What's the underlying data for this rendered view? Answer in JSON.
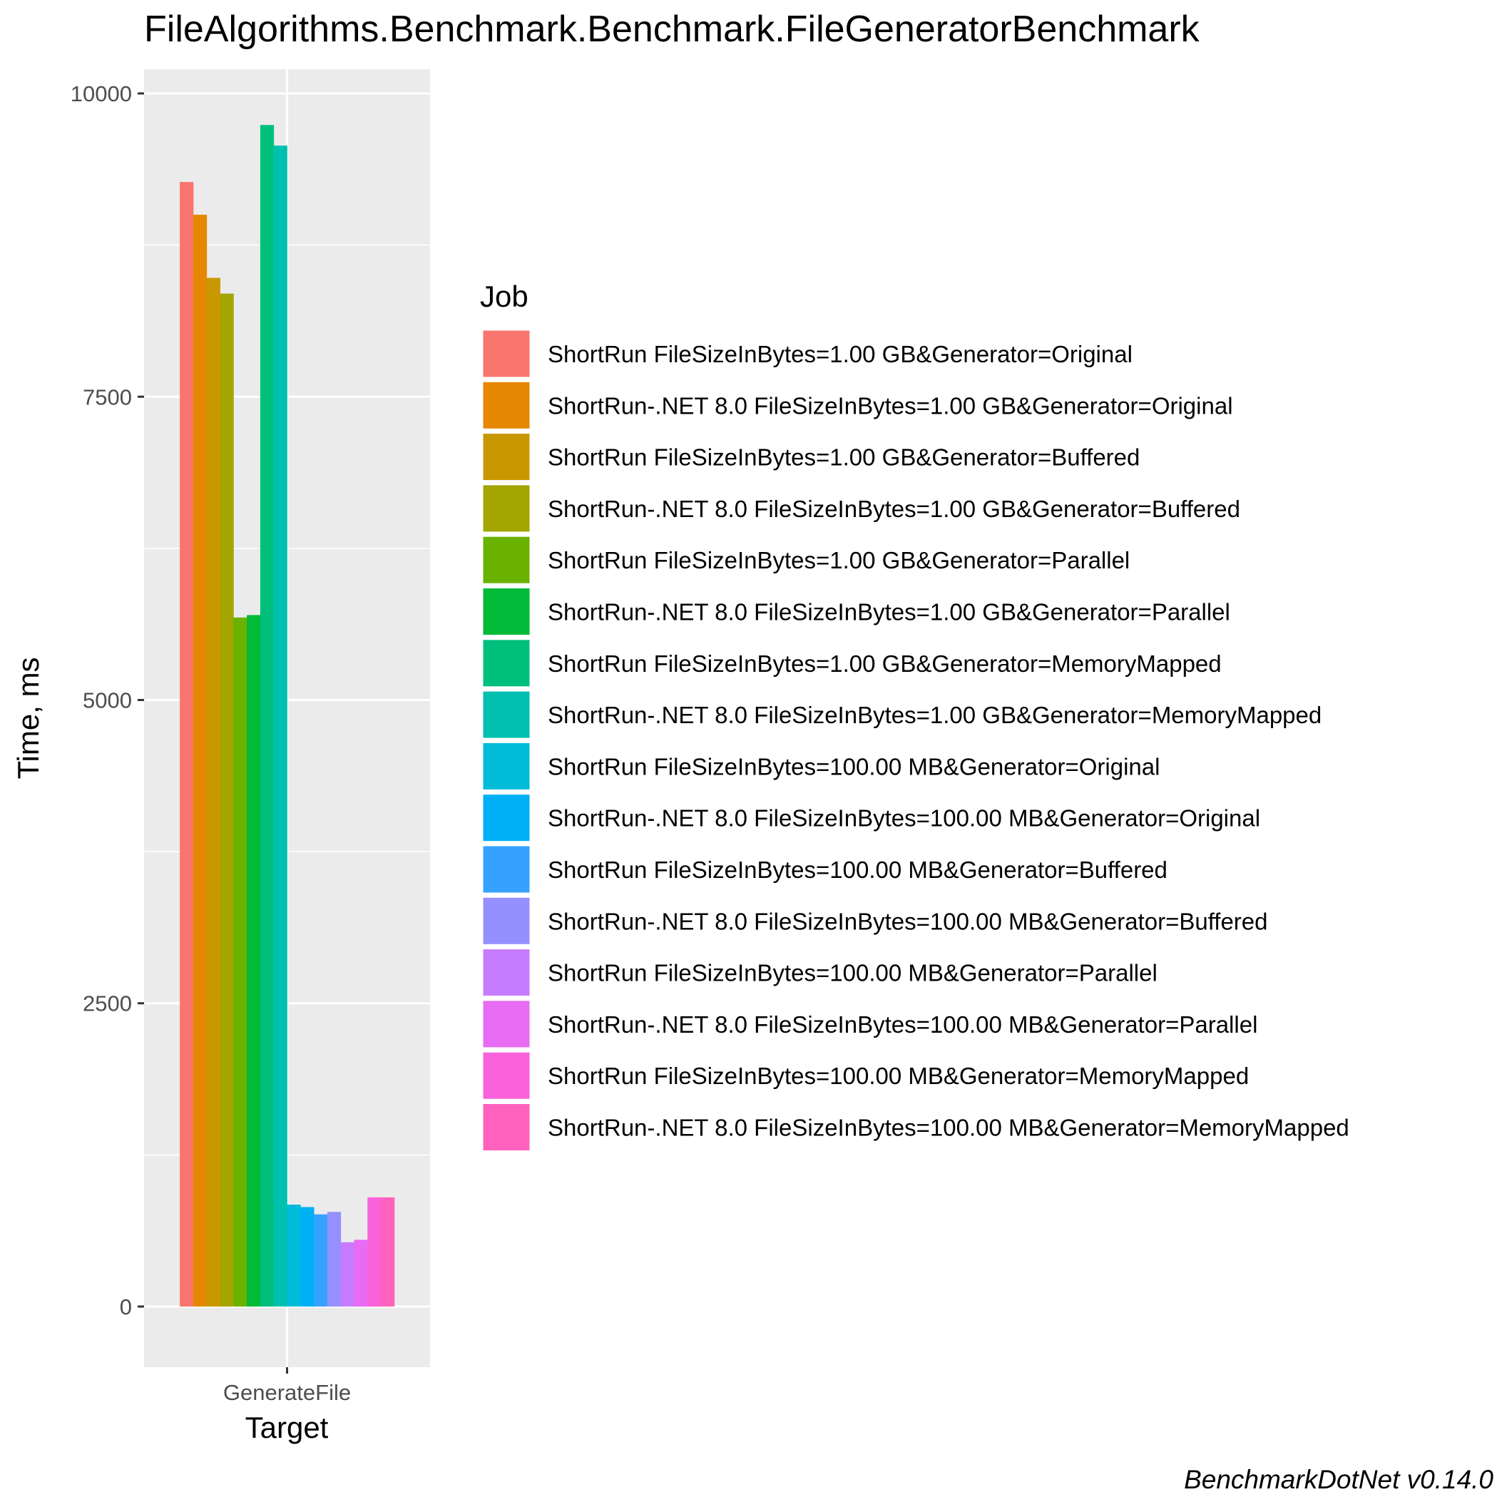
{
  "chart_data": {
    "type": "bar",
    "title": "FileAlgorithms.Benchmark.Benchmark.FileGeneratorBenchmark",
    "xlabel": "Target",
    "ylabel": "Time, ms",
    "categories": [
      "GenerateFile"
    ],
    "y_ticks": [
      "0",
      "2500",
      "5000",
      "7500",
      "10000"
    ],
    "ylim": [
      -500,
      10200
    ],
    "grid": true,
    "legend": {
      "title": "Job",
      "placement": "right"
    },
    "series": [
      {
        "name": "ShortRun FileSizeInBytes=1.00 GB&Generator=Original",
        "color": "#F8766D",
        "values": [
          9270
        ]
      },
      {
        "name": "ShortRun-.NET 8.0 FileSizeInBytes=1.00 GB&Generator=Original",
        "color": "#E58700",
        "values": [
          9000
        ]
      },
      {
        "name": "ShortRun FileSizeInBytes=1.00 GB&Generator=Buffered",
        "color": "#C99800",
        "values": [
          8480
        ]
      },
      {
        "name": "ShortRun-.NET 8.0 FileSizeInBytes=1.00 GB&Generator=Buffered",
        "color": "#A3A500",
        "values": [
          8350
        ]
      },
      {
        "name": "ShortRun FileSizeInBytes=1.00 GB&Generator=Parallel",
        "color": "#6BB100",
        "values": [
          5680
        ]
      },
      {
        "name": "ShortRun-.NET 8.0 FileSizeInBytes=1.00 GB&Generator=Parallel",
        "color": "#00BA38",
        "values": [
          5700
        ]
      },
      {
        "name": "ShortRun FileSizeInBytes=1.00 GB&Generator=MemoryMapped",
        "color": "#00BF7D",
        "values": [
          9740
        ]
      },
      {
        "name": "ShortRun-.NET 8.0 FileSizeInBytes=1.00 GB&Generator=MemoryMapped",
        "color": "#00C0AF",
        "values": [
          9570
        ]
      },
      {
        "name": "ShortRun FileSizeInBytes=100.00 MB&Generator=Original",
        "color": "#00BCD8",
        "values": [
          840
        ]
      },
      {
        "name": "ShortRun-.NET 8.0 FileSizeInBytes=100.00 MB&Generator=Original",
        "color": "#00B0F6",
        "values": [
          820
        ]
      },
      {
        "name": "ShortRun FileSizeInBytes=100.00 MB&Generator=Buffered",
        "color": "#35A2FF",
        "values": [
          760
        ]
      },
      {
        "name": "ShortRun-.NET 8.0 FileSizeInBytes=100.00 MB&Generator=Buffered",
        "color": "#9590FF",
        "values": [
          780
        ]
      },
      {
        "name": "ShortRun FileSizeInBytes=100.00 MB&Generator=Parallel",
        "color": "#C77CFF",
        "values": [
          530
        ]
      },
      {
        "name": "ShortRun-.NET 8.0 FileSizeInBytes=100.00 MB&Generator=Parallel",
        "color": "#E76BF3",
        "values": [
          550
        ]
      },
      {
        "name": "ShortRun FileSizeInBytes=100.00 MB&Generator=MemoryMapped",
        "color": "#FA62DB",
        "values": [
          900
        ]
      },
      {
        "name": "ShortRun-.NET 8.0 FileSizeInBytes=100.00 MB&Generator=MemoryMapped",
        "color": "#FF62BC",
        "values": [
          900
        ]
      }
    ],
    "caption": "BenchmarkDotNet v0.14.0"
  }
}
